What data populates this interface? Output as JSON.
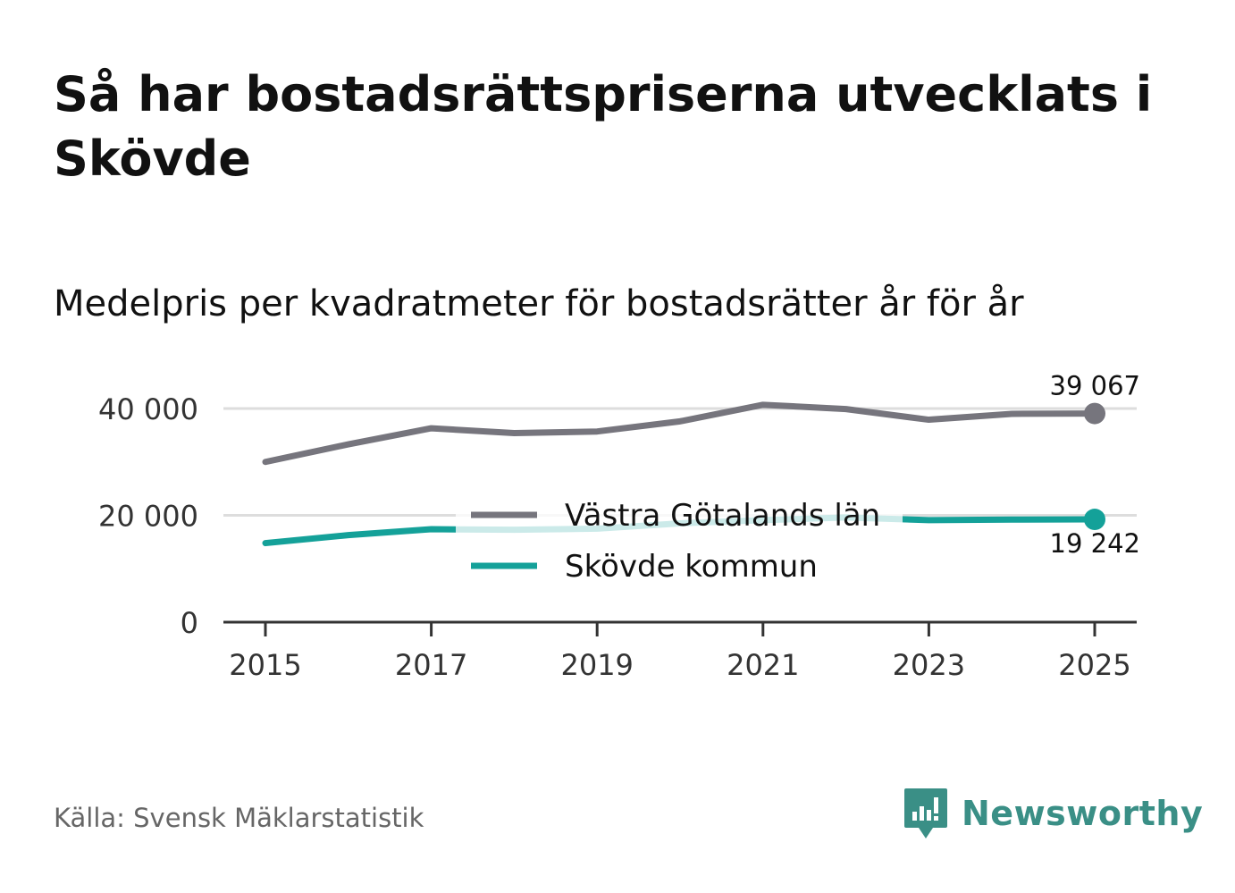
{
  "header": {
    "title": "Så har bostadsrättspriserna utvecklats i Skövde",
    "subtitle": "Medelpris per kvadratmeter för bostadsrätter år för år"
  },
  "footer": {
    "source": "Källa: Svensk Mäklarstatistik",
    "logo_text": "Newsworthy"
  },
  "colors": {
    "region": "#76757d",
    "municipality": "#14a199",
    "grid": "#dddddd",
    "axis": "#333333",
    "logo": "#3a8f86"
  },
  "chart_data": {
    "type": "line",
    "title": "Medelpris per kvadratmeter för bostadsrätter år för år",
    "xlabel": "",
    "ylabel": "",
    "x": [
      2015,
      2016,
      2017,
      2018,
      2019,
      2020,
      2021,
      2022,
      2023,
      2024,
      2025
    ],
    "xticks": [
      "2015",
      "2017",
      "2019",
      "2021",
      "2023",
      "2025"
    ],
    "yticks": [
      0,
      20000,
      40000
    ],
    "ytick_labels": [
      "0",
      "20 000",
      "40 000"
    ],
    "ylim": [
      0,
      40000
    ],
    "grid": true,
    "legend_position": "center",
    "series": [
      {
        "name": "Västra Götalands län",
        "values": [
          30000,
          33300,
          36300,
          35400,
          35700,
          37600,
          40700,
          39900,
          37900,
          39000,
          39067
        ],
        "end_label": "39 067"
      },
      {
        "name": "Skövde kommun",
        "values": [
          14800,
          16300,
          17400,
          17300,
          17500,
          18500,
          19100,
          19600,
          19100,
          19200,
          19242
        ],
        "end_label": "19 242"
      }
    ]
  }
}
